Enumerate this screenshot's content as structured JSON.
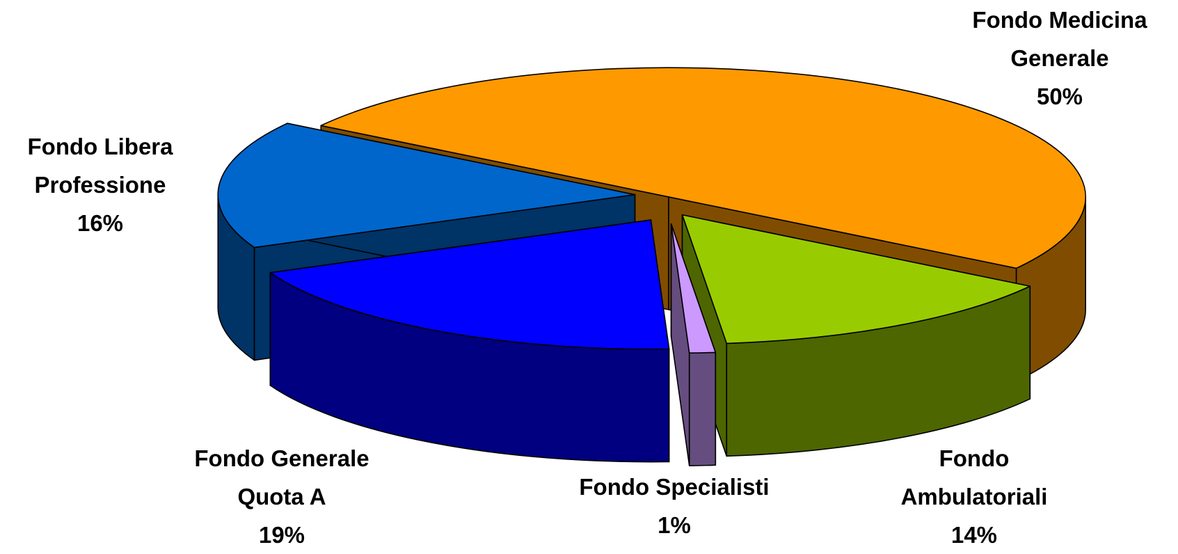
{
  "chart_data": {
    "type": "pie3d",
    "categories": [
      "Fondo Medicina Generale",
      "Fondo Ambulatoriali",
      "Fondo Specialisti",
      "Fondo Generale Quota A",
      "Fondo Libera Professione"
    ],
    "values": [
      50,
      14,
      1,
      19,
      16
    ],
    "value_labels": [
      "50%",
      "14%",
      "1%",
      "19%",
      "16%"
    ],
    "colors": [
      "#FF9900",
      "#99CC00",
      "#CC99FF",
      "#0000FF",
      "#0066CC"
    ]
  }
}
